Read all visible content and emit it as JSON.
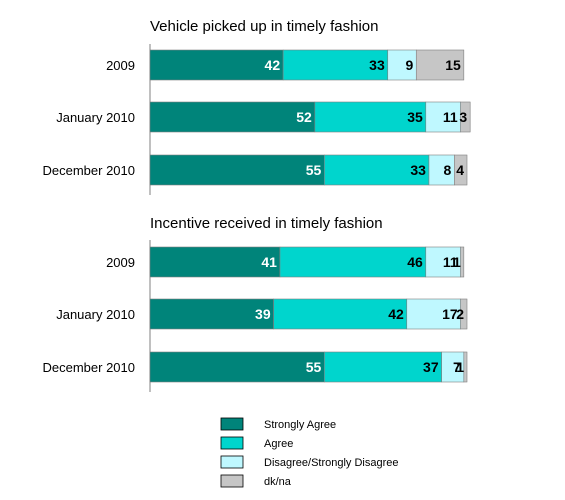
{
  "chart_data": [
    {
      "type": "bar",
      "orientation": "horizontal",
      "stacked": true,
      "title": "Vehicle picked up in timely fashion",
      "categories": [
        "2009",
        "January 2010",
        "December 2010"
      ],
      "series": [
        {
          "name": "Strongly Agree",
          "color": "#00847a",
          "values": [
            42,
            52,
            55
          ]
        },
        {
          "name": "Agree",
          "color": "#00d5cd",
          "values": [
            33,
            35,
            33
          ]
        },
        {
          "name": "Disagree/Strongly Disagree",
          "color": "#bff8ff",
          "values": [
            9,
            11,
            8
          ]
        },
        {
          "name": "dk/na",
          "color": "#c6c6c6",
          "values": [
            15,
            3,
            4
          ]
        }
      ],
      "xlim": [
        0,
        100
      ]
    },
    {
      "type": "bar",
      "orientation": "horizontal",
      "stacked": true,
      "title": "Incentive received in timely fashion",
      "categories": [
        "2009",
        "January 2010",
        "December 2010"
      ],
      "series": [
        {
          "name": "Strongly Agree",
          "color": "#00847a",
          "values": [
            41,
            39,
            55
          ]
        },
        {
          "name": "Agree",
          "color": "#00d5cd",
          "values": [
            46,
            42,
            37
          ]
        },
        {
          "name": "Disagree/Strongly Disagree",
          "color": "#bff8ff",
          "values": [
            11,
            17,
            7
          ]
        },
        {
          "name": "dk/na",
          "color": "#c6c6c6",
          "values": [
            1,
            2,
            1
          ]
        }
      ],
      "xlim": [
        0,
        100
      ]
    }
  ],
  "legend": {
    "placement": "bottom",
    "items": [
      {
        "label": "Strongly Agree",
        "color": "#00847a"
      },
      {
        "label": "Agree",
        "color": "#00d5cd"
      },
      {
        "label": "Disagree/Strongly Disagree",
        "color": "#bff8ff"
      },
      {
        "label": "dk/na",
        "color": "#c6c6c6"
      }
    ]
  },
  "colors": {
    "label_on_dark": "#ffffff",
    "label_on_light": "#000000",
    "axis": "#808080",
    "bar_stroke": "#7f7f7f"
  }
}
